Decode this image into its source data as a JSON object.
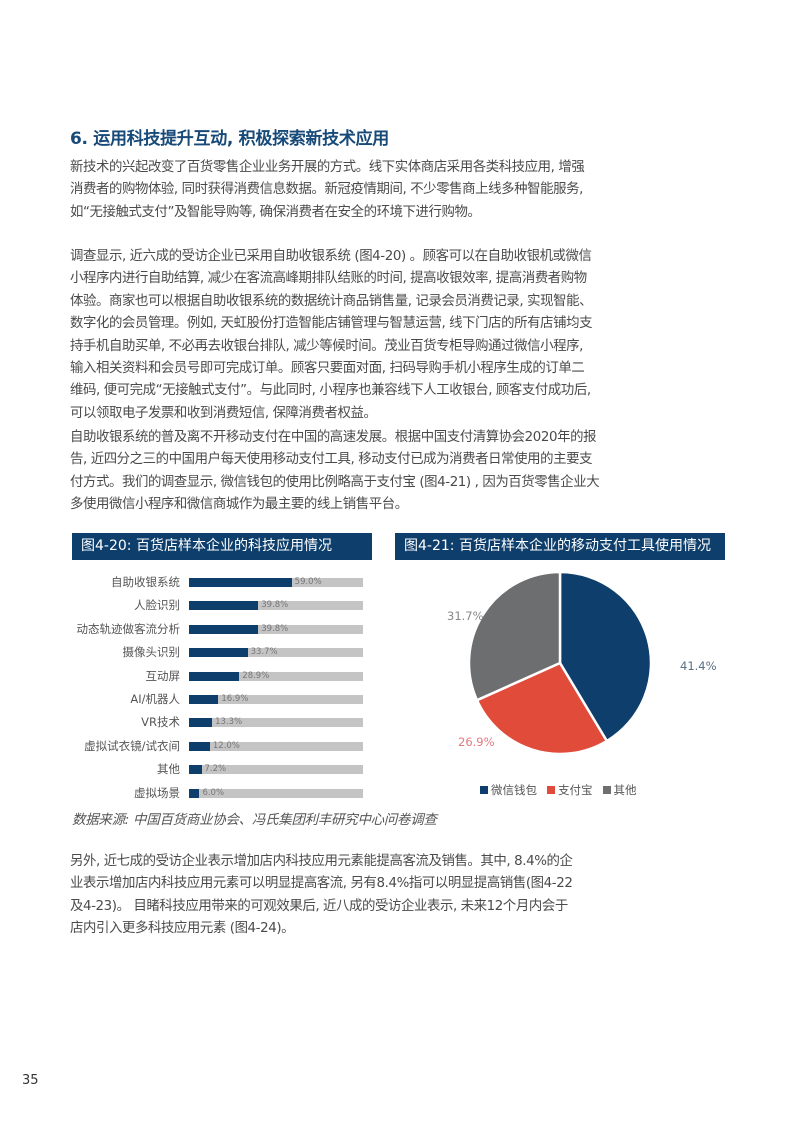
{
  "heading": "6. 运用科技提升互动, 积极探索新技术应用",
  "paragraphs": [
    [
      "新技术的兴起改变了百货零售企业业务开展的方式。线下实体商店采用各类科技应用, 增强",
      "消费者的购物体验, 同时获得消费信息数据。新冠疫情期间, 不少零售商上线多种智能服务,",
      "如“无接触式支付”及智能导购等, 确保消费者在安全的环境下进行购物。"
    ],
    [
      "调查显示, 近六成的受访企业已采用自助收银系统 (图4-20) 。顾客可以在自助收银机或微信",
      "小程序内进行自助结算, 减少在客流高峰期排队结账的时间, 提高收银效率, 提高消费者购物",
      "体验。商家也可以根据自助收银系统的数据统计商品销售量, 记录会员消费记录, 实现智能、",
      "数字化的会员管理。例如, 天虹股份打造智能店铺管理与智慧运营, 线下门店的所有店铺均支",
      "持手机自助买单, 不必再去收银台排队, 减少等候时间。茂业百货专柜导购通过微信小程序,",
      "输入相关资料和会员号即可完成订单。顾客只要面对面, 扫码导购手机小程序生成的订单二",
      "维码, 便可完成“无接触式支付”。与此同时, 小程序也兼容线下人工收银台, 顾客支付成功后,",
      "可以领取电子发票和收到消费短信, 保障消费者权益。"
    ],
    [
      "自助收银系统的普及离不开移动支付在中国的高速发展。根据中国支付清算协会2020年的报",
      "告, 近四分之三的中国用户每天使用移动支付工具, 移动支付已成为消费者日常使用的主要支",
      "付方式。我们的调查显示, 微信钱包的使用比例略高于支付宝 (图4-21) , 因为百货零售企业大",
      "多使用微信小程序和微信商城作为最主要的线上销售平台。"
    ],
    [
      "另外, 近七成的受访企业表示增加店内科技应用元素能提高客流及销售。其中, 8.4%的企",
      "业表示增加店内科技应用元素可以明显提高客流, 另有8.4%指可以明显提高销售(图4-22",
      "及4-23)。 目睹科技应用带来的可观效果后, 近八成的受访企业表示, 未来12个月内会于",
      "店内引入更多科技应用元素 (图4-24)。"
    ]
  ],
  "source": "数据来源: 中国百货商业协会、冯氏集团利丰研究中心问卷调查",
  "page_number": "35",
  "chart_data": [
    {
      "type": "bar",
      "orientation": "horizontal",
      "title": "图4-20: 百货店样本企业的科技应用情况",
      "categories": [
        "自助收银系统",
        "人脸识别",
        "动态轨迹做客流分析",
        "摄像头识别",
        "互动屏",
        "AI/机器人",
        "VR技术",
        "虚拟试衣镜/试衣间",
        "其他",
        "虚拟场景"
      ],
      "values": [
        59.0,
        39.8,
        39.8,
        33.7,
        28.9,
        16.9,
        13.3,
        12.0,
        7.2,
        6.0
      ],
      "labels": [
        "59.0%",
        "39.8%",
        "39.8%",
        "33.7%",
        "28.9%",
        "16.9%",
        "13.3%",
        "12.0%",
        "7.2%",
        "6.0%"
      ],
      "xlim": [
        0,
        100
      ],
      "colors": {
        "fill": "#0e3f6c",
        "track": "#c4c4c4"
      }
    },
    {
      "type": "pie",
      "title": "图4-21: 百货店样本企业的移动支付工具使用情况",
      "slices": [
        {
          "name": "微信钱包",
          "value": 41.4,
          "label": "41.4%",
          "color": "#0e3f6c"
        },
        {
          "name": "支付宝",
          "value": 26.9,
          "label": "26.9%",
          "color": "#e04b3a"
        },
        {
          "name": "其他",
          "value": 31.7,
          "label": "31.7%",
          "color": "#6d6e70"
        }
      ],
      "legend": "bottom"
    }
  ]
}
